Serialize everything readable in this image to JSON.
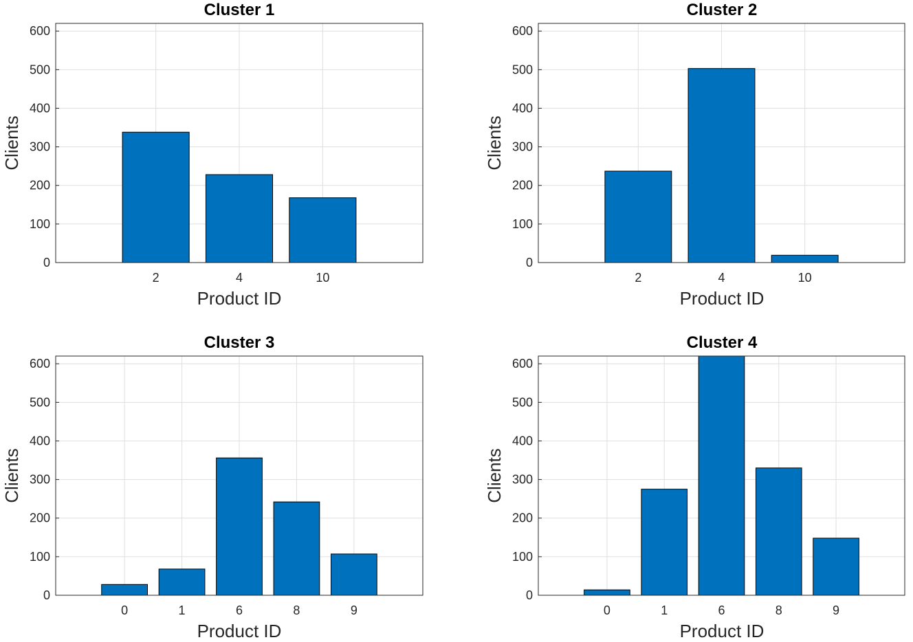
{
  "chart_data": [
    {
      "type": "bar",
      "title": "Cluster 1",
      "xlabel": "Product ID",
      "ylabel": "Clients",
      "categories": [
        "2",
        "4",
        "10"
      ],
      "values": [
        338,
        228,
        168
      ],
      "ylim": [
        0,
        620
      ],
      "yticks": [
        0,
        100,
        200,
        300,
        400,
        500,
        600
      ],
      "grid": true,
      "bar_color": "#0072bd"
    },
    {
      "type": "bar",
      "title": "Cluster 2",
      "xlabel": "Product ID",
      "ylabel": "Clients",
      "categories": [
        "2",
        "4",
        "10"
      ],
      "values": [
        237,
        503,
        19
      ],
      "ylim": [
        0,
        620
      ],
      "yticks": [
        0,
        100,
        200,
        300,
        400,
        500,
        600
      ],
      "grid": true,
      "bar_color": "#0072bd"
    },
    {
      "type": "bar",
      "title": "Cluster 3",
      "xlabel": "Product ID",
      "ylabel": "Clients",
      "categories": [
        "0",
        "1",
        "6",
        "8",
        "9"
      ],
      "values": [
        28,
        68,
        356,
        242,
        107
      ],
      "ylim": [
        0,
        620
      ],
      "yticks": [
        0,
        100,
        200,
        300,
        400,
        500,
        600
      ],
      "grid": true,
      "bar_color": "#0072bd"
    },
    {
      "type": "bar",
      "title": "Cluster 4",
      "xlabel": "Product ID",
      "ylabel": "Clients",
      "categories": [
        "0",
        "1",
        "6",
        "8",
        "9"
      ],
      "values": [
        14,
        275,
        620,
        330,
        148
      ],
      "ylim": [
        0,
        620
      ],
      "yticks": [
        0,
        100,
        200,
        300,
        400,
        500,
        600
      ],
      "grid": true,
      "bar_color": "#0072bd"
    }
  ]
}
